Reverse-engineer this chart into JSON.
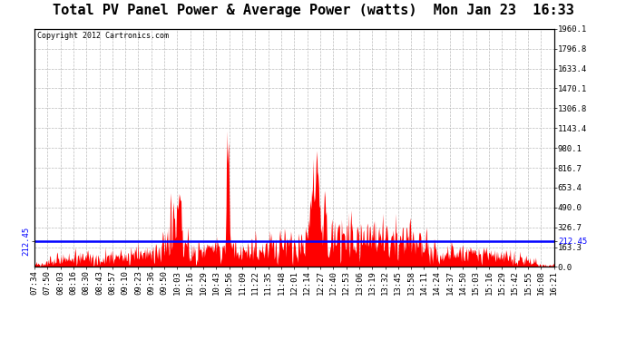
{
  "title": "Total PV Panel Power & Average Power (watts)  Mon Jan 23  16:33",
  "copyright": "Copyright 2012 Cartronics.com",
  "avg_line_y": 212.45,
  "avg_label": "212.45",
  "ymin": 0.0,
  "ymax": 1960.1,
  "yticks": [
    0.0,
    163.3,
    326.7,
    490.0,
    653.4,
    816.7,
    980.1,
    1143.4,
    1306.8,
    1470.1,
    1633.4,
    1796.8,
    1960.1
  ],
  "background_color": "#ffffff",
  "fill_color": "#ff0000",
  "line_color": "#0000ff",
  "grid_color": "#bbbbbb",
  "x_labels": [
    "07:34",
    "07:50",
    "08:03",
    "08:16",
    "08:30",
    "08:43",
    "08:57",
    "09:10",
    "09:23",
    "09:36",
    "09:50",
    "10:03",
    "10:16",
    "10:29",
    "10:43",
    "10:56",
    "11:09",
    "11:22",
    "11:35",
    "11:48",
    "12:01",
    "12:14",
    "12:27",
    "12:40",
    "12:53",
    "13:06",
    "13:19",
    "13:32",
    "13:45",
    "13:58",
    "14:11",
    "14:24",
    "14:37",
    "14:50",
    "15:03",
    "15:16",
    "15:29",
    "15:42",
    "15:55",
    "16:08",
    "16:21"
  ],
  "title_fontsize": 11,
  "copyright_fontsize": 6,
  "tick_fontsize": 6.5,
  "avg_fontsize": 6.5
}
